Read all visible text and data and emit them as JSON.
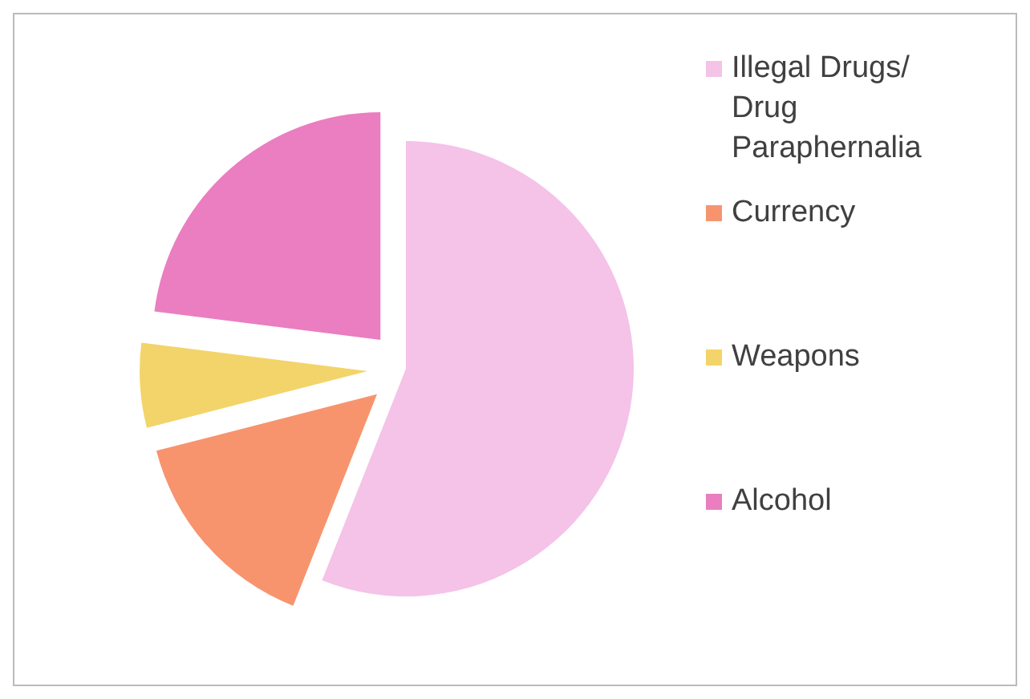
{
  "chart_data": {
    "type": "pie",
    "categories": [
      "Illegal Drugs/Drug Paraphernalia",
      "Currency",
      "Weapons",
      "Alcohol"
    ],
    "values": [
      56,
      15,
      6,
      23
    ],
    "colors": [
      "#f5c2e8",
      "#f7946e",
      "#f3d46a",
      "#ea7ec0"
    ],
    "legend": "right"
  }
}
